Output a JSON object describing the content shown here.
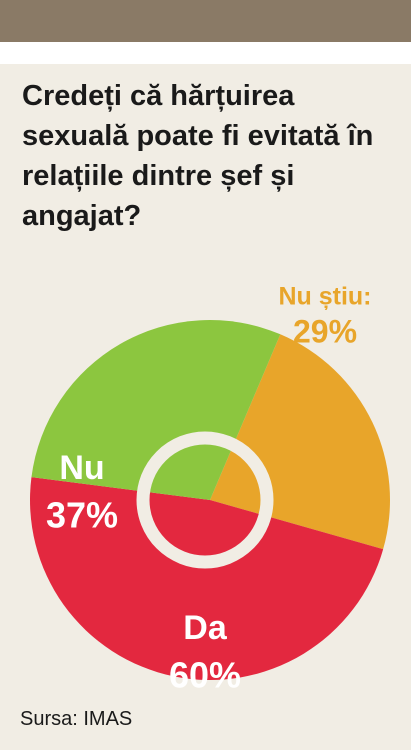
{
  "chart_data": {
    "type": "pie",
    "title": "Credeți că hărțuirea sexuală poate fi evitată în relațiile dintre șef și angajat?",
    "categories": [
      "Nu știu:",
      "Da",
      "Nu"
    ],
    "values": [
      29,
      60,
      37
    ],
    "value_labels": [
      "29%",
      "60%",
      "37%"
    ],
    "colors": [
      "#e8a52a",
      "#e3283f",
      "#8cc63f"
    ],
    "label_colors": [
      "#e8a52a",
      "#ffffff",
      "#ffffff"
    ],
    "source": "Sursa: IMAS"
  }
}
